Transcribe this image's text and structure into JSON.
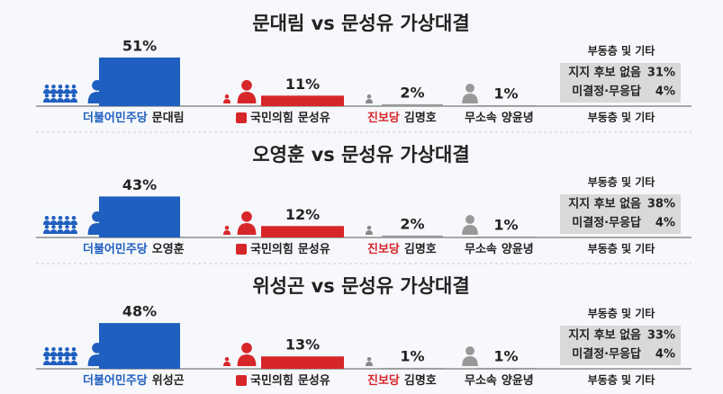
{
  "chart_data": [
    {
      "type": "bar",
      "title": "문대림 vs 문성유 가상대결",
      "parties": [
        "더불어민주당",
        "국민의힘",
        "진보당",
        "무소속"
      ],
      "categories": [
        "문대림",
        "문성유",
        "김명호",
        "양윤녕"
      ],
      "values": [
        51,
        11,
        2,
        1
      ],
      "value_labels": [
        "51%",
        "11%",
        "2%",
        "1%"
      ],
      "colors": [
        "#1f5fbf",
        "#d7262a",
        "#9a9a9a",
        "#9a9a9a"
      ],
      "others": {
        "title": "부동층 및 기타",
        "footer": "부동층 및 기타",
        "labels": [
          "지지 후보 없음",
          "미결정·무응답"
        ],
        "values": [
          31,
          4
        ],
        "value_labels": [
          "31%",
          "4%"
        ]
      }
    },
    {
      "type": "bar",
      "title": "오영훈 vs 문성유 가상대결",
      "parties": [
        "더불어민주당",
        "국민의힘",
        "진보당",
        "무소속"
      ],
      "categories": [
        "오영훈",
        "문성유",
        "김명호",
        "양윤녕"
      ],
      "values": [
        43,
        12,
        2,
        1
      ],
      "value_labels": [
        "43%",
        "12%",
        "2%",
        "1%"
      ],
      "colors": [
        "#1f5fbf",
        "#d7262a",
        "#9a9a9a",
        "#9a9a9a"
      ],
      "others": {
        "title": "부동층 및 기타",
        "footer": "부동층 및 기타",
        "labels": [
          "지지 후보 없음",
          "미결정·무응답"
        ],
        "values": [
          38,
          4
        ],
        "value_labels": [
          "38%",
          "4%"
        ]
      }
    },
    {
      "type": "bar",
      "title": "위성곤 vs 문성유 가상대결",
      "parties": [
        "더불어민주당",
        "국민의힘",
        "진보당",
        "무소속"
      ],
      "categories": [
        "위성곤",
        "문성유",
        "김명호",
        "양윤녕"
      ],
      "values": [
        48,
        13,
        1,
        1
      ],
      "value_labels": [
        "48%",
        "13%",
        "1%",
        "1%"
      ],
      "colors": [
        "#1f5fbf",
        "#d7262a",
        "#9a9a9a",
        "#9a9a9a"
      ],
      "others": {
        "title": "부동층 및 기타",
        "footer": "부동층 및 기타",
        "labels": [
          "지지 후보 없음",
          "미결정·무응답"
        ],
        "values": [
          33,
          4
        ],
        "value_labels": [
          "33%",
          "4%"
        ]
      }
    }
  ]
}
